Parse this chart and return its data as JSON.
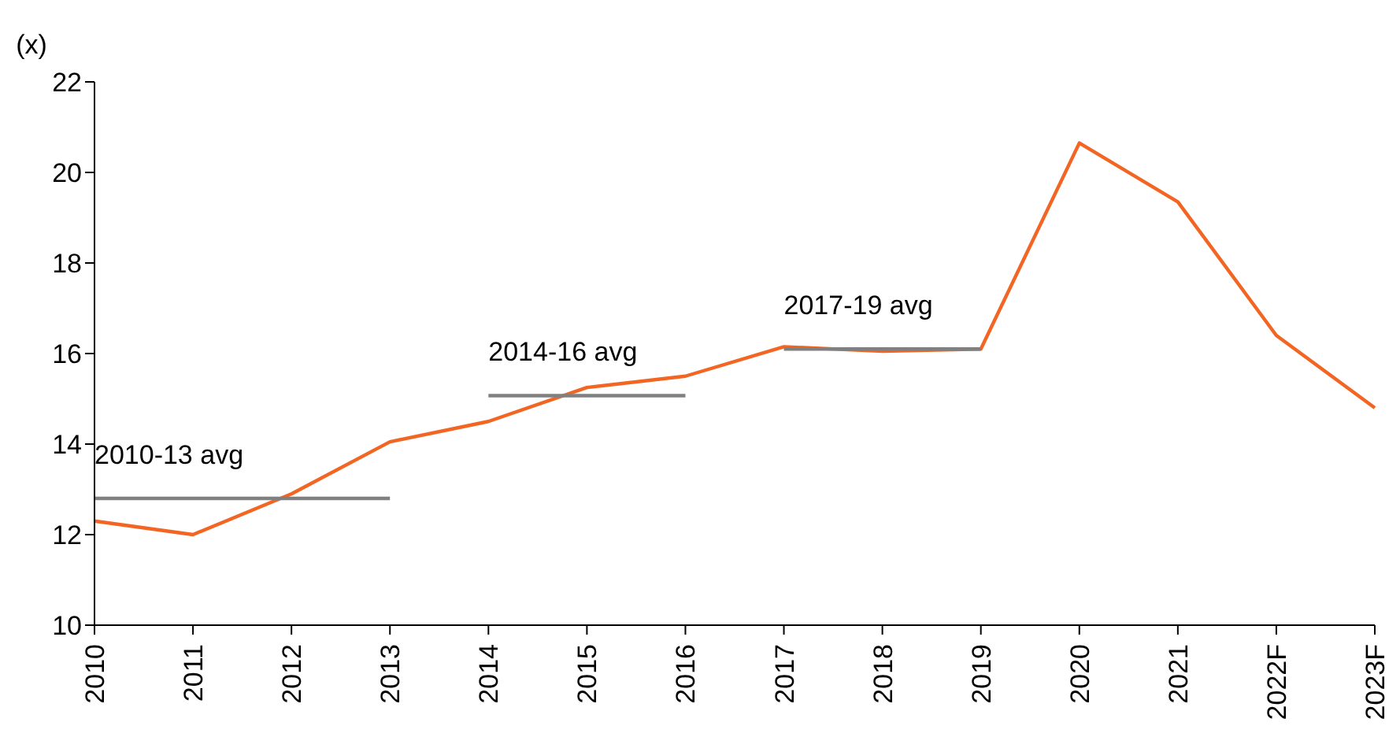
{
  "chart_data": {
    "type": "line",
    "ylabel": "(x)",
    "categories": [
      "2010",
      "2011",
      "2012",
      "2013",
      "2014",
      "2015",
      "2016",
      "2017",
      "2018",
      "2019",
      "2020",
      "2021",
      "2022F",
      "2023F"
    ],
    "series": [
      {
        "color": "#f26522",
        "values": [
          12.3,
          12.0,
          12.9,
          14.05,
          14.5,
          15.25,
          15.5,
          16.15,
          16.05,
          16.1,
          20.65,
          19.35,
          16.4,
          14.8
        ]
      },
      {
        "name": "2010-13 avg",
        "color": "#808080",
        "values": [
          12.8,
          12.8,
          12.8,
          12.8,
          null,
          null,
          null,
          null,
          null,
          null,
          null,
          null,
          null,
          null
        ]
      },
      {
        "name": "2014-16 avg",
        "color": "#808080",
        "values": [
          null,
          null,
          null,
          null,
          15.07,
          15.07,
          15.07,
          null,
          null,
          null,
          null,
          null,
          null,
          null
        ]
      },
      {
        "name": "2017-19 avg",
        "color": "#808080",
        "values": [
          null,
          null,
          null,
          null,
          null,
          null,
          null,
          16.1,
          16.1,
          16.1,
          null,
          null,
          null,
          null
        ]
      }
    ],
    "ylim": [
      10,
      22
    ],
    "yticks": [
      10,
      12,
      14,
      16,
      18,
      20,
      22
    ],
    "grid": false,
    "legend": false,
    "marker": "none"
  }
}
